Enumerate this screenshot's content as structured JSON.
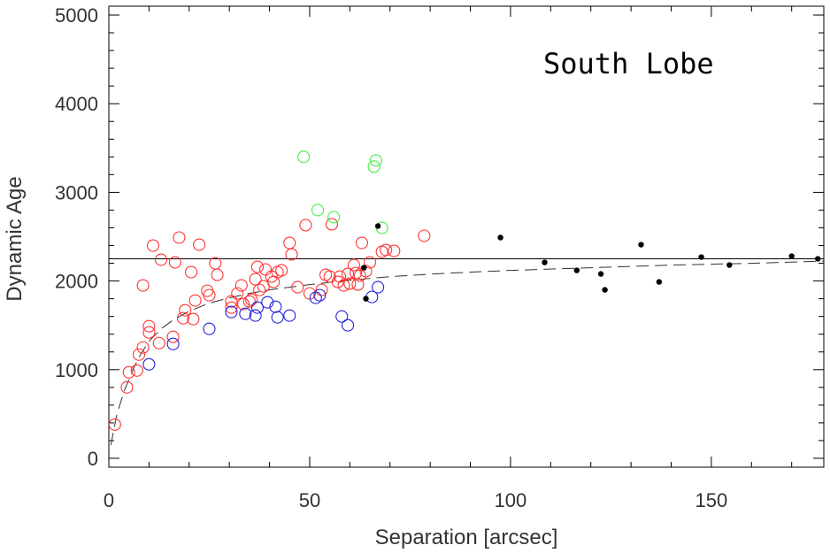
{
  "chart_data": {
    "type": "scatter",
    "title": "",
    "annotation": "South Lobe",
    "xlabel": "Separation [arcsec]",
    "ylabel": "Dynamic Age",
    "xlim": [
      0,
      178
    ],
    "ylim": [
      -100,
      5100
    ],
    "x_ticks": [
      0,
      50,
      100,
      150
    ],
    "y_ticks": [
      0,
      1000,
      2000,
      3000,
      4000,
      5000
    ],
    "x_minor_step": 10,
    "y_minor_step": 200,
    "grid": false,
    "legend": "none",
    "series": [
      {
        "color": "#ff3333",
        "marker": "open-circle",
        "points": [
          [
            1.5,
            380
          ],
          [
            4.5,
            800
          ],
          [
            5,
            970
          ],
          [
            7,
            990
          ],
          [
            7.5,
            1170
          ],
          [
            8.5,
            1250
          ],
          [
            8.5,
            1950
          ],
          [
            10,
            1420
          ],
          [
            10,
            1490
          ],
          [
            11,
            2400
          ],
          [
            12.5,
            1300
          ],
          [
            13,
            2240
          ],
          [
            16,
            1370
          ],
          [
            16.5,
            2210
          ],
          [
            17.5,
            2490
          ],
          [
            18.5,
            1580
          ],
          [
            19,
            1670
          ],
          [
            20.5,
            2100
          ],
          [
            21,
            1570
          ],
          [
            21.5,
            1780
          ],
          [
            22.5,
            2410
          ],
          [
            24.5,
            1890
          ],
          [
            25,
            1840
          ],
          [
            26.5,
            2200
          ],
          [
            27,
            2070
          ],
          [
            30.5,
            1700
          ],
          [
            30.5,
            1770
          ],
          [
            32,
            1860
          ],
          [
            33,
            1950
          ],
          [
            33.5,
            1740
          ],
          [
            35,
            1770
          ],
          [
            35.5,
            1790
          ],
          [
            36.5,
            2020
          ],
          [
            37,
            2160
          ],
          [
            37.5,
            1900
          ],
          [
            38.5,
            1940
          ],
          [
            39,
            2130
          ],
          [
            40.5,
            2050
          ],
          [
            41,
            1990
          ],
          [
            42,
            2100
          ],
          [
            43,
            2120
          ],
          [
            45,
            2430
          ],
          [
            45.5,
            2300
          ],
          [
            47,
            1930
          ],
          [
            49,
            2630
          ],
          [
            50,
            1860
          ],
          [
            53,
            1900
          ],
          [
            54,
            2070
          ],
          [
            55,
            2050
          ],
          [
            55.5,
            2640
          ],
          [
            57,
            1990
          ],
          [
            57.5,
            2050
          ],
          [
            58.5,
            1950
          ],
          [
            59.5,
            2080
          ],
          [
            60,
            1970
          ],
          [
            61,
            2180
          ],
          [
            61.5,
            2090
          ],
          [
            62,
            1960
          ],
          [
            62.5,
            2060
          ],
          [
            63,
            2430
          ],
          [
            64,
            2110
          ],
          [
            65,
            2210
          ],
          [
            68,
            2330
          ],
          [
            69,
            2350
          ],
          [
            71,
            2340
          ],
          [
            78.5,
            2510
          ]
        ]
      },
      {
        "color": "#2222dd",
        "marker": "open-circle",
        "points": [
          [
            10,
            1060
          ],
          [
            16,
            1290
          ],
          [
            25,
            1460
          ],
          [
            30.5,
            1650
          ],
          [
            34,
            1630
          ],
          [
            36.5,
            1610
          ],
          [
            37,
            1700
          ],
          [
            39.5,
            1760
          ],
          [
            41.5,
            1710
          ],
          [
            42,
            1590
          ],
          [
            45,
            1610
          ],
          [
            51.5,
            1810
          ],
          [
            52.5,
            1840
          ],
          [
            58,
            1600
          ],
          [
            59.5,
            1500
          ],
          [
            65.5,
            1820
          ],
          [
            67,
            1930
          ]
        ]
      },
      {
        "color": "#44ee44",
        "marker": "open-circle",
        "points": [
          [
            48.5,
            3400
          ],
          [
            52,
            2800
          ],
          [
            56,
            2720
          ],
          [
            66,
            3290
          ],
          [
            66.5,
            3360
          ],
          [
            68,
            2600
          ]
        ]
      },
      {
        "color": "#000000",
        "marker": "filled-dot",
        "points": [
          [
            63.5,
            2150
          ],
          [
            64,
            1800
          ],
          [
            67,
            2620
          ],
          [
            97.5,
            2490
          ],
          [
            108.5,
            2210
          ],
          [
            116.5,
            2120
          ],
          [
            122.5,
            2080
          ],
          [
            123.5,
            1900
          ],
          [
            132.5,
            2410
          ],
          [
            137,
            1990
          ],
          [
            147.5,
            2270
          ],
          [
            154.5,
            2180
          ],
          [
            170,
            2280
          ],
          [
            176.5,
            2250
          ]
        ]
      }
    ],
    "reference_line": {
      "style": "solid",
      "color": "#000000",
      "y": 2250
    },
    "fit_curve": {
      "style": "dashed",
      "color": "#333333",
      "points": [
        [
          0.5,
          150
        ],
        [
          2,
          500
        ],
        [
          4,
          780
        ],
        [
          6,
          1000
        ],
        [
          8,
          1180
        ],
        [
          10,
          1320
        ],
        [
          13,
          1460
        ],
        [
          16,
          1560
        ],
        [
          20,
          1660
        ],
        [
          25,
          1750
        ],
        [
          30,
          1810
        ],
        [
          35,
          1860
        ],
        [
          40,
          1900
        ],
        [
          50,
          1960
        ],
        [
          60,
          2010
        ],
        [
          70,
          2050
        ],
        [
          85,
          2090
        ],
        [
          100,
          2120
        ],
        [
          120,
          2150
        ],
        [
          140,
          2180
        ],
        [
          160,
          2200
        ],
        [
          178,
          2225
        ]
      ]
    }
  }
}
